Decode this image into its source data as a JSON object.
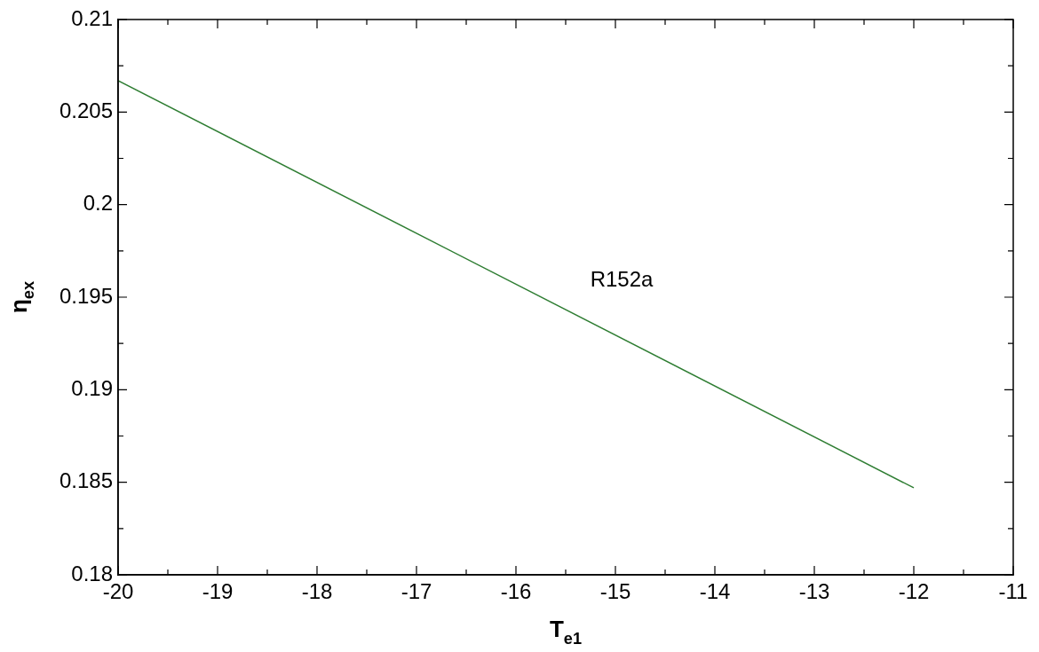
{
  "chart_data": {
    "type": "line",
    "xlabel": "T$_{e1}$",
    "ylabel": "η$_{ex}$",
    "x": [
      -20,
      -16,
      -12
    ],
    "series": [
      {
        "color": "#2e7d32",
        "values": [
          0.2067,
          0.1957,
          0.1847
        ]
      }
    ],
    "xlim": [
      -20,
      -11
    ],
    "xticks": [
      -20,
      {
        "value": -19.5,
        "label": null
      },
      -19,
      {
        "value": -18.5,
        "label": null
      },
      -18,
      {
        "value": -17.5,
        "label": null
      },
      -17,
      {
        "value": -16.5,
        "label": null
      },
      -16,
      {
        "value": -15.5,
        "label": null
      },
      -15,
      {
        "value": -14.5,
        "label": null
      },
      -14,
      {
        "value": -13.5,
        "label": null
      },
      -13,
      {
        "value": -12.5,
        "label": null
      },
      -12,
      {
        "value": -11.5,
        "label": null
      },
      -11
    ],
    "ylim": [
      0.18,
      0.21
    ],
    "yticks": [
      0.18,
      {
        "value": 0.1825,
        "label": null
      },
      0.185,
      {
        "value": 0.1875,
        "label": null
      },
      0.19,
      {
        "value": 0.1925,
        "label": null
      },
      0.195,
      {
        "value": 0.1975,
        "label": null
      },
      0.2,
      {
        "value": 0.2025,
        "label": null
      },
      0.205,
      {
        "value": 0.2075,
        "label": null
      },
      0.21
    ],
    "annotations": [
      "R152a"
    ],
    "grid": false,
    "legend": false,
    "marker": "none",
    "line_style": "solid"
  }
}
